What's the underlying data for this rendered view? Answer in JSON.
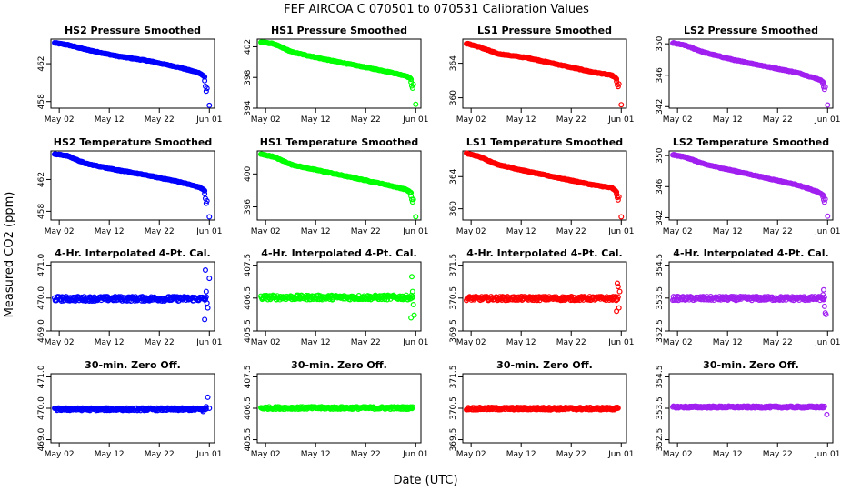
{
  "title": "FEF   AIRCOA C   070501 to 070531   Calibration Values",
  "xlabel": "Date (UTC)",
  "ylabel": "Measured CO2 (ppm)",
  "colors": {
    "blue": "#0000ff",
    "green": "#00ff00",
    "red": "#ff0000",
    "purple": "#a020f0"
  },
  "chart_data": [
    {
      "type": "scatter",
      "row": 0,
      "col": 0,
      "color": "blue",
      "title": "HS2 Pressure Smoothed",
      "yticks": [
        458,
        462
      ],
      "ytick_labels": [
        "458",
        "462"
      ],
      "ylim": [
        457.3,
        464.6
      ],
      "trend": [
        [
          0,
          464.2
        ],
        [
          0.08,
          464.0
        ],
        [
          0.2,
          463.5
        ],
        [
          0.4,
          462.8
        ],
        [
          0.6,
          462.3
        ],
        [
          0.8,
          461.6
        ],
        [
          0.93,
          461.0
        ],
        [
          0.96,
          460.6
        ]
      ],
      "drop": [
        [
          0.96,
          460.2
        ],
        [
          0.965,
          459.6
        ],
        [
          0.97,
          459.1
        ],
        [
          0.975,
          459.4
        ],
        [
          0.99,
          457.6
        ]
      ]
    },
    {
      "type": "scatter",
      "row": 0,
      "col": 1,
      "color": "green",
      "title": "HS1 Pressure Smoothed",
      "yticks": [
        394,
        398,
        402
      ],
      "ytick_labels": [
        "394",
        "398",
        "402"
      ],
      "ylim": [
        394,
        403
      ],
      "trend": [
        [
          0,
          402.6
        ],
        [
          0.08,
          402.4
        ],
        [
          0.2,
          401.3
        ],
        [
          0.4,
          400.4
        ],
        [
          0.6,
          399.6
        ],
        [
          0.8,
          398.8
        ],
        [
          0.93,
          398.2
        ],
        [
          0.96,
          397.8
        ]
      ],
      "drop": [
        [
          0.96,
          397.4
        ],
        [
          0.965,
          396.9
        ],
        [
          0.97,
          396.6
        ],
        [
          0.975,
          397.1
        ],
        [
          0.99,
          394.5
        ]
      ]
    },
    {
      "type": "scatter",
      "row": 0,
      "col": 2,
      "color": "red",
      "title": "LS1 Pressure Smoothed",
      "yticks": [
        360,
        364
      ],
      "ytick_labels": [
        "360",
        "364"
      ],
      "ylim": [
        358.8,
        366.8
      ],
      "trend": [
        [
          0,
          366.3
        ],
        [
          0.08,
          365.9
        ],
        [
          0.2,
          365.1
        ],
        [
          0.4,
          364.6
        ],
        [
          0.6,
          363.8
        ],
        [
          0.8,
          363.0
        ],
        [
          0.93,
          362.6
        ],
        [
          0.96,
          362.2
        ]
      ],
      "drop": [
        [
          0.96,
          361.9
        ],
        [
          0.965,
          361.5
        ],
        [
          0.97,
          361.3
        ],
        [
          0.975,
          361.6
        ],
        [
          0.99,
          359.2
        ]
      ]
    },
    {
      "type": "scatter",
      "row": 0,
      "col": 3,
      "color": "purple",
      "title": "LS2 Pressure Smoothed",
      "yticks": [
        342,
        346,
        350
      ],
      "ytick_labels": [
        "342",
        "346",
        "350"
      ],
      "ylim": [
        341.8,
        350.6
      ],
      "trend": [
        [
          0,
          350.1
        ],
        [
          0.08,
          349.8
        ],
        [
          0.2,
          348.9
        ],
        [
          0.4,
          347.9
        ],
        [
          0.6,
          347.1
        ],
        [
          0.8,
          346.3
        ],
        [
          0.93,
          345.5
        ],
        [
          0.96,
          345.2
        ]
      ],
      "drop": [
        [
          0.96,
          344.9
        ],
        [
          0.965,
          344.5
        ],
        [
          0.97,
          344.2
        ],
        [
          0.975,
          344.5
        ],
        [
          0.99,
          342.2
        ]
      ]
    },
    {
      "type": "scatter",
      "row": 1,
      "col": 0,
      "color": "blue",
      "title": "HS2 Temperature Smoothed",
      "yticks": [
        458,
        462
      ],
      "ytick_labels": [
        "458",
        "462"
      ],
      "ylim": [
        456.9,
        465.6
      ],
      "trend": [
        [
          0,
          465.2
        ],
        [
          0.08,
          465.0
        ],
        [
          0.2,
          464.0
        ],
        [
          0.4,
          463.2
        ],
        [
          0.6,
          462.5
        ],
        [
          0.8,
          461.7
        ],
        [
          0.93,
          461.0
        ],
        [
          0.96,
          460.6
        ]
      ],
      "drop": [
        [
          0.96,
          460.2
        ],
        [
          0.965,
          459.6
        ],
        [
          0.97,
          459.0
        ],
        [
          0.975,
          459.3
        ],
        [
          0.99,
          457.3
        ]
      ]
    },
    {
      "type": "scatter",
      "row": 1,
      "col": 1,
      "color": "green",
      "title": "HS1 Temperature Smoothed",
      "yticks": [
        396,
        400
      ],
      "ytick_labels": [
        "396",
        "400"
      ],
      "ylim": [
        394.4,
        402.8
      ],
      "trend": [
        [
          0,
          402.4
        ],
        [
          0.08,
          402.1
        ],
        [
          0.2,
          401.1
        ],
        [
          0.4,
          400.3
        ],
        [
          0.6,
          399.5
        ],
        [
          0.8,
          398.7
        ],
        [
          0.93,
          398.1
        ],
        [
          0.96,
          397.7
        ]
      ],
      "drop": [
        [
          0.96,
          397.3
        ],
        [
          0.965,
          396.9
        ],
        [
          0.97,
          396.6
        ],
        [
          0.975,
          396.9
        ],
        [
          0.99,
          394.8
        ]
      ]
    },
    {
      "type": "scatter",
      "row": 1,
      "col": 2,
      "color": "red",
      "title": "LS1 Temperature Smoothed",
      "yticks": [
        360,
        364
      ],
      "ytick_labels": [
        "360",
        "364"
      ],
      "ylim": [
        358.6,
        367.2
      ],
      "trend": [
        [
          0,
          366.9
        ],
        [
          0.08,
          366.5
        ],
        [
          0.2,
          365.5
        ],
        [
          0.4,
          364.6
        ],
        [
          0.6,
          363.8
        ],
        [
          0.8,
          363.0
        ],
        [
          0.93,
          362.6
        ],
        [
          0.96,
          362.1
        ]
      ],
      "drop": [
        [
          0.96,
          361.8
        ],
        [
          0.965,
          361.4
        ],
        [
          0.97,
          361.1
        ],
        [
          0.975,
          361.5
        ],
        [
          0.99,
          359.0
        ]
      ]
    },
    {
      "type": "scatter",
      "row": 1,
      "col": 3,
      "color": "purple",
      "title": "LS2 Temperature Smoothed",
      "yticks": [
        342,
        346,
        350
      ],
      "ytick_labels": [
        "342",
        "346",
        "350"
      ],
      "ylim": [
        341.7,
        350.6
      ],
      "trend": [
        [
          0,
          350.1
        ],
        [
          0.08,
          349.8
        ],
        [
          0.2,
          348.9
        ],
        [
          0.4,
          348.0
        ],
        [
          0.6,
          347.1
        ],
        [
          0.8,
          346.2
        ],
        [
          0.93,
          345.3
        ],
        [
          0.96,
          344.9
        ]
      ],
      "drop": [
        [
          0.96,
          344.7
        ],
        [
          0.965,
          344.3
        ],
        [
          0.97,
          344.0
        ],
        [
          0.975,
          344.4
        ],
        [
          0.99,
          342.2
        ]
      ]
    },
    {
      "type": "scatter",
      "row": 2,
      "col": 0,
      "color": "blue",
      "title": "4-Hr. Interpolated 4-Pt. Cal.",
      "yticks": [
        469.0,
        470.0,
        471.0
      ],
      "ytick_labels": [
        "469.0",
        "470.0",
        "471.0"
      ],
      "ylim": [
        469.0,
        471.1
      ],
      "level": 469.98,
      "noise": 0.07,
      "outliers": [
        [
          0.965,
          470.85
        ],
        [
          0.97,
          470.2
        ],
        [
          0.975,
          469.85
        ],
        [
          0.98,
          469.7
        ],
        [
          0.96,
          469.35
        ],
        [
          0.99,
          470.6
        ]
      ]
    },
    {
      "type": "scatter",
      "row": 2,
      "col": 1,
      "color": "green",
      "title": "4-Hr. Interpolated 4-Pt. Cal.",
      "yticks": [
        405.5,
        406.5,
        407.5
      ],
      "ytick_labels": [
        "405.5",
        "406.5",
        "407.5"
      ],
      "ylim": [
        405.5,
        407.6
      ],
      "level": 406.52,
      "noise": 0.07,
      "outliers": [
        [
          0.965,
          407.15
        ],
        [
          0.97,
          406.7
        ],
        [
          0.975,
          406.3
        ],
        [
          0.96,
          405.9
        ],
        [
          0.98,
          405.98
        ]
      ]
    },
    {
      "type": "scatter",
      "row": 2,
      "col": 2,
      "color": "red",
      "title": "4-Hr. Interpolated 4-Pt. Cal.",
      "yticks": [
        369.5,
        370.5,
        371.5
      ],
      "ytick_labels": [
        "369.5",
        "370.5",
        "371.5"
      ],
      "ylim": [
        369.5,
        371.6
      ],
      "level": 370.49,
      "noise": 0.06,
      "outliers": [
        [
          0.965,
          370.95
        ],
        [
          0.97,
          370.85
        ],
        [
          0.975,
          370.2
        ],
        [
          0.96,
          370.1
        ],
        [
          0.98,
          370.7
        ]
      ]
    },
    {
      "type": "scatter",
      "row": 2,
      "col": 3,
      "color": "purple",
      "title": "4-Hr. Interpolated 4-Pt. Cal.",
      "yticks": [
        352.5,
        353.5,
        354.5
      ],
      "ytick_labels": [
        "352.5",
        "353.5",
        "354.5"
      ],
      "ylim": [
        352.5,
        354.6
      ],
      "level": 353.49,
      "noise": 0.06,
      "outliers": [
        [
          0.965,
          353.75
        ],
        [
          0.97,
          353.25
        ],
        [
          0.975,
          353.05
        ],
        [
          0.98,
          353.0
        ],
        [
          0.96,
          353.6
        ]
      ]
    },
    {
      "type": "scatter",
      "row": 3,
      "col": 0,
      "color": "blue",
      "title": "30-min. Zero Off.",
      "yticks": [
        469.0,
        470.0,
        471.0
      ],
      "ytick_labels": [
        "469.0",
        "470.0",
        "471.0"
      ],
      "ylim": [
        468.9,
        471.1
      ],
      "level": 469.97,
      "noise": 0.04,
      "outliers": [
        [
          0.98,
          470.35
        ],
        [
          0.97,
          470.05
        ],
        [
          0.95,
          469.9
        ],
        [
          0.99,
          470.0
        ]
      ]
    },
    {
      "type": "scatter",
      "row": 3,
      "col": 1,
      "color": "green",
      "title": "30-min. Zero Off.",
      "yticks": [
        405.5,
        406.5,
        407.5
      ],
      "ytick_labels": [
        "405.5",
        "406.5",
        "407.5"
      ],
      "ylim": [
        405.4,
        407.6
      ],
      "level": 406.51,
      "noise": 0.04,
      "outliers": []
    },
    {
      "type": "scatter",
      "row": 3,
      "col": 2,
      "color": "red",
      "title": "30-min. Zero Off.",
      "yticks": [
        369.5,
        370.5,
        371.5
      ],
      "ytick_labels": [
        "369.5",
        "370.5",
        "371.5"
      ],
      "ylim": [
        369.4,
        371.6
      ],
      "level": 370.49,
      "noise": 0.04,
      "outliers": []
    },
    {
      "type": "scatter",
      "row": 3,
      "col": 3,
      "color": "purple",
      "title": "30-min. Zero Off.",
      "yticks": [
        352.5,
        353.5,
        354.5
      ],
      "ytick_labels": [
        "352.5",
        "353.5",
        "354.5"
      ],
      "ylim": [
        352.4,
        354.6
      ],
      "level": 353.54,
      "noise": 0.03,
      "outliers": [
        [
          0.985,
          353.3
        ]
      ]
    }
  ],
  "xtick_labels": [
    "May 02",
    "May 12",
    "May 22",
    "Jun 01"
  ],
  "xtick_fracs": [
    0.03,
    0.35,
    0.67,
    0.99
  ]
}
